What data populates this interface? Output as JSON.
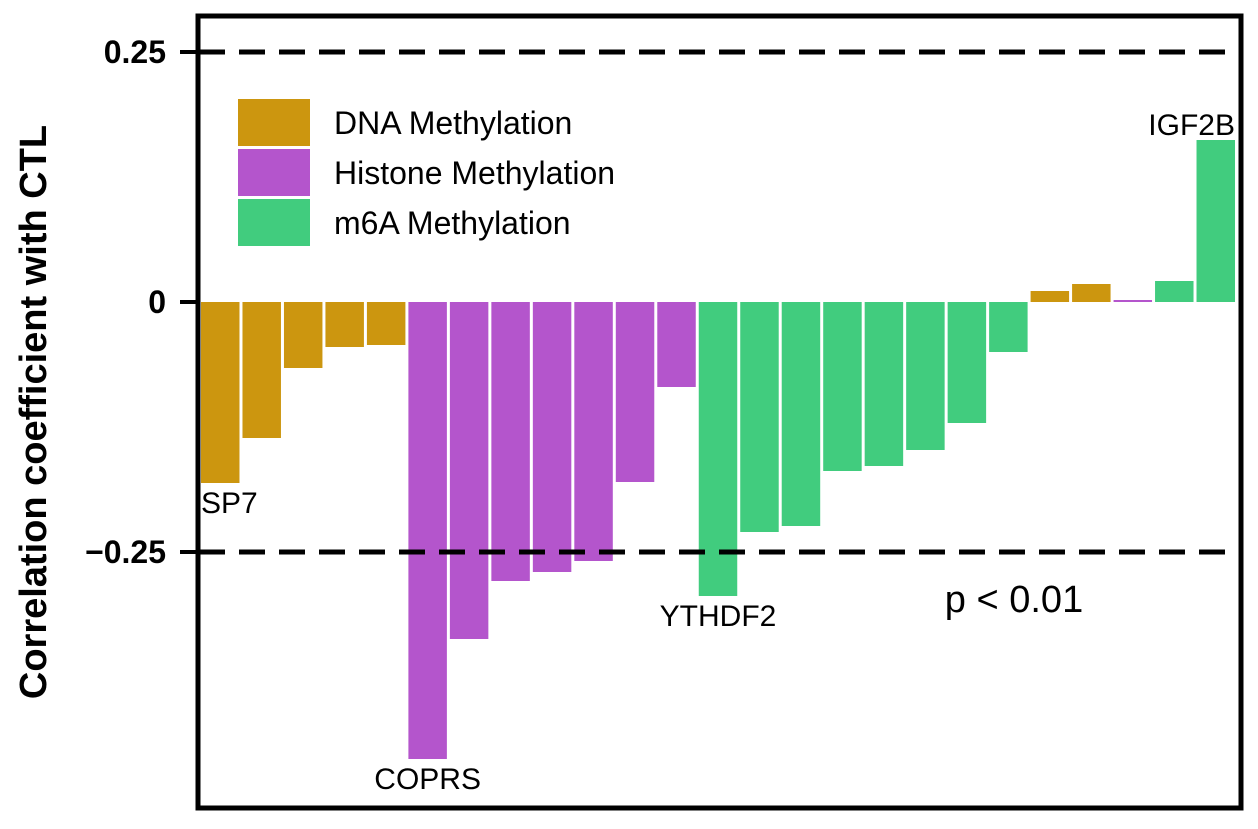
{
  "chart_data": {
    "type": "bar",
    "title": "",
    "xlabel": "",
    "ylabel": "Correlation coefficient with CTL",
    "ylim": [
      -0.505,
      0.285
    ],
    "yticks": [
      {
        "value": 0.25,
        "label": "0.25"
      },
      {
        "value": 0,
        "label": "0"
      },
      {
        "value": -0.25,
        "label": "−0.25"
      }
    ],
    "reference_lines": [
      0.25,
      -0.25
    ],
    "grid": false,
    "legend_position": "top-left",
    "legend": [
      {
        "name": "DNA Methylation",
        "color": "#CC960F"
      },
      {
        "name": "Histone Methylation",
        "color": "#B455CC"
      },
      {
        "name": "m6A Methylation",
        "color": "#41CC7E"
      }
    ],
    "series": [
      {
        "name": "DNA Methylation",
        "color": "#CC960F"
      },
      {
        "name": "Histone Methylation",
        "color": "#B455CC"
      },
      {
        "name": "m6A Methylation",
        "color": "#41CC7E"
      }
    ],
    "bars": [
      {
        "value": -0.181,
        "group": 0,
        "label": "SP7"
      },
      {
        "value": -0.136,
        "group": 0
      },
      {
        "value": -0.066,
        "group": 0
      },
      {
        "value": -0.045,
        "group": 0
      },
      {
        "value": -0.043,
        "group": 0
      },
      {
        "value": -0.457,
        "group": 1,
        "label": "COPRS"
      },
      {
        "value": -0.337,
        "group": 1
      },
      {
        "value": -0.279,
        "group": 1
      },
      {
        "value": -0.27,
        "group": 1
      },
      {
        "value": -0.259,
        "group": 1
      },
      {
        "value": -0.18,
        "group": 1
      },
      {
        "value": -0.085,
        "group": 1
      },
      {
        "value": -0.294,
        "group": 2,
        "label": "YTHDF2"
      },
      {
        "value": -0.23,
        "group": 2
      },
      {
        "value": -0.224,
        "group": 2
      },
      {
        "value": -0.169,
        "group": 2
      },
      {
        "value": -0.164,
        "group": 2
      },
      {
        "value": -0.148,
        "group": 2
      },
      {
        "value": -0.121,
        "group": 2
      },
      {
        "value": -0.05,
        "group": 2
      },
      {
        "value": 0.011,
        "group": 0
      },
      {
        "value": 0.018,
        "group": 0
      },
      {
        "value": 0.002,
        "group": 1
      },
      {
        "value": 0.021,
        "group": 2
      },
      {
        "value": 0.162,
        "group": 2,
        "label": "IGF2B"
      }
    ],
    "annotation": "p < 0.01"
  }
}
